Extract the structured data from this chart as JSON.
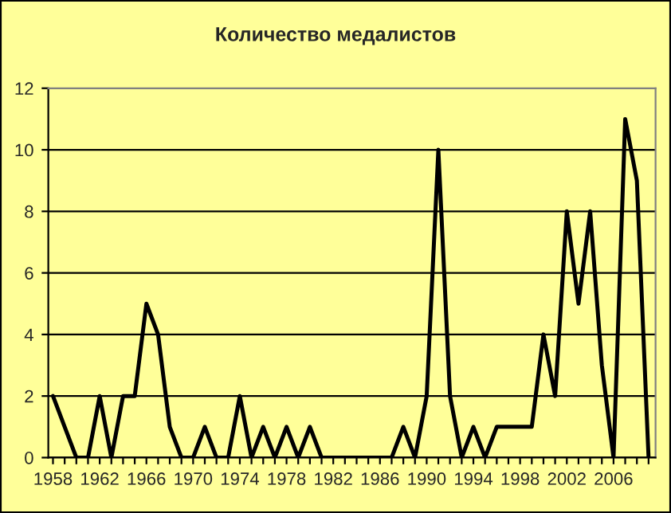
{
  "chart_data": {
    "type": "line",
    "title": "Количество медалистов",
    "x": [
      1958,
      1959,
      1960,
      1961,
      1962,
      1963,
      1964,
      1965,
      1966,
      1967,
      1968,
      1969,
      1970,
      1971,
      1972,
      1973,
      1974,
      1975,
      1976,
      1977,
      1978,
      1979,
      1980,
      1981,
      1982,
      1983,
      1984,
      1985,
      1986,
      1987,
      1988,
      1989,
      1990,
      1991,
      1992,
      1993,
      1994,
      1995,
      1996,
      1997,
      1998,
      1999,
      2000,
      2001,
      2002,
      2003,
      2004,
      2005,
      2006,
      2007,
      2008,
      2009
    ],
    "series": [
      {
        "color": "#000000",
        "values": [
          2,
          1,
          0,
          0,
          2,
          0,
          2,
          2,
          5,
          4,
          1,
          0,
          0,
          1,
          0,
          0,
          2,
          0,
          1,
          0,
          1,
          0,
          1,
          0,
          0,
          0,
          0,
          0,
          0,
          0,
          1,
          0,
          2,
          10,
          2,
          0,
          1,
          0,
          1,
          1,
          1,
          1,
          4,
          2,
          8,
          5,
          8,
          3,
          0,
          11,
          9,
          0
        ]
      }
    ],
    "xlim": [
      1957.6,
      2009.6
    ],
    "xticks": [
      1958,
      {
        "value": 1959,
        "label": null
      },
      {
        "value": 1960,
        "label": null
      },
      {
        "value": 1961,
        "label": null
      },
      1962,
      {
        "value": 1963,
        "label": null
      },
      {
        "value": 1964,
        "label": null
      },
      {
        "value": 1965,
        "label": null
      },
      1966,
      {
        "value": 1967,
        "label": null
      },
      {
        "value": 1968,
        "label": null
      },
      {
        "value": 1969,
        "label": null
      },
      1970,
      {
        "value": 1971,
        "label": null
      },
      {
        "value": 1972,
        "label": null
      },
      {
        "value": 1973,
        "label": null
      },
      1974,
      {
        "value": 1975,
        "label": null
      },
      {
        "value": 1976,
        "label": null
      },
      {
        "value": 1977,
        "label": null
      },
      1978,
      {
        "value": 1979,
        "label": null
      },
      {
        "value": 1980,
        "label": null
      },
      {
        "value": 1981,
        "label": null
      },
      1982,
      {
        "value": 1983,
        "label": null
      },
      {
        "value": 1984,
        "label": null
      },
      {
        "value": 1985,
        "label": null
      },
      1986,
      {
        "value": 1987,
        "label": null
      },
      {
        "value": 1988,
        "label": null
      },
      {
        "value": 1989,
        "label": null
      },
      1990,
      {
        "value": 1991,
        "label": null
      },
      {
        "value": 1992,
        "label": null
      },
      {
        "value": 1993,
        "label": null
      },
      1994,
      {
        "value": 1995,
        "label": null
      },
      {
        "value": 1996,
        "label": null
      },
      {
        "value": 1997,
        "label": null
      },
      1998,
      {
        "value": 1999,
        "label": null
      },
      {
        "value": 2000,
        "label": null
      },
      {
        "value": 2001,
        "label": null
      },
      2002,
      {
        "value": 2003,
        "label": null
      },
      {
        "value": 2004,
        "label": null
      },
      {
        "value": 2005,
        "label": null
      },
      2006,
      {
        "value": 2007,
        "label": null
      },
      {
        "value": 2008,
        "label": null
      },
      {
        "value": 2009,
        "label": null
      }
    ],
    "ylim": [
      0,
      12
    ],
    "yticks": [
      0,
      2,
      4,
      6,
      8,
      10,
      12
    ],
    "grid": "y",
    "marker": "none",
    "line_style": "solid",
    "legend": false
  }
}
